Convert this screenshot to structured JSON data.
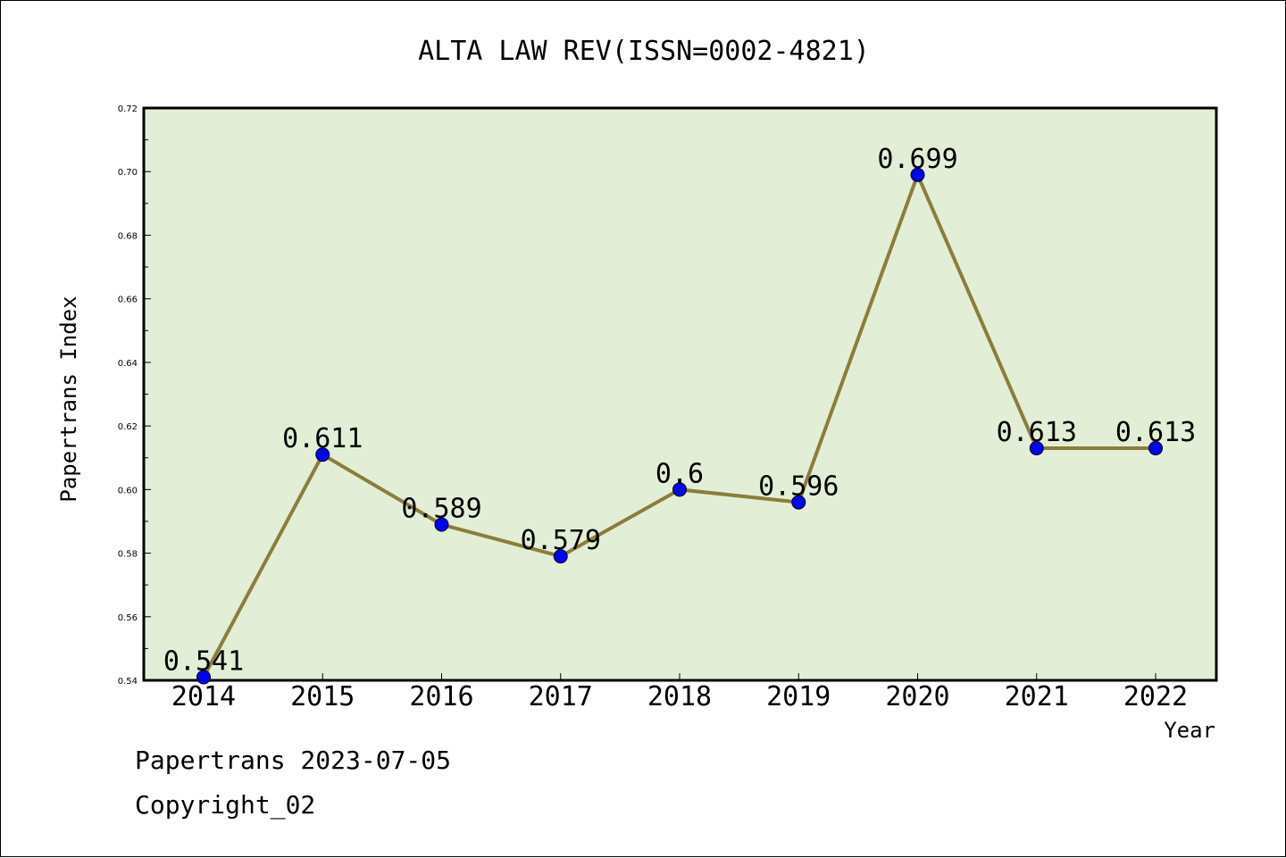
{
  "chart_data": {
    "type": "line",
    "title": "ALTA LAW REV(ISSN=0002-4821)",
    "xlabel": "Year",
    "ylabel": "Papertrans Index",
    "categories": [
      "2014",
      "2015",
      "2016",
      "2017",
      "2018",
      "2019",
      "2020",
      "2021",
      "2022"
    ],
    "series": [
      {
        "values": [
          0.541,
          0.611,
          0.589,
          0.579,
          0.6,
          0.596,
          0.699,
          0.613,
          0.613
        ],
        "labels": [
          "0.541",
          "0.611",
          "0.589",
          "0.579",
          "0.6",
          "0.596",
          "0.699",
          "0.613",
          "0.613"
        ],
        "line_color": "#8b7d3a",
        "marker_color": "#0000ff"
      }
    ],
    "ylim": [
      0.54,
      0.72
    ],
    "yticks": [
      "0.54",
      "0.56",
      "0.58",
      "0.60",
      "0.62",
      "0.64",
      "0.66",
      "0.68",
      "0.70",
      "0.72"
    ],
    "plot_background": "#e2efd6",
    "grid": false,
    "legend": "none"
  },
  "footer": {
    "date_line": "Papertrans 2023-07-05",
    "copyright_line": "Copyright_02"
  }
}
